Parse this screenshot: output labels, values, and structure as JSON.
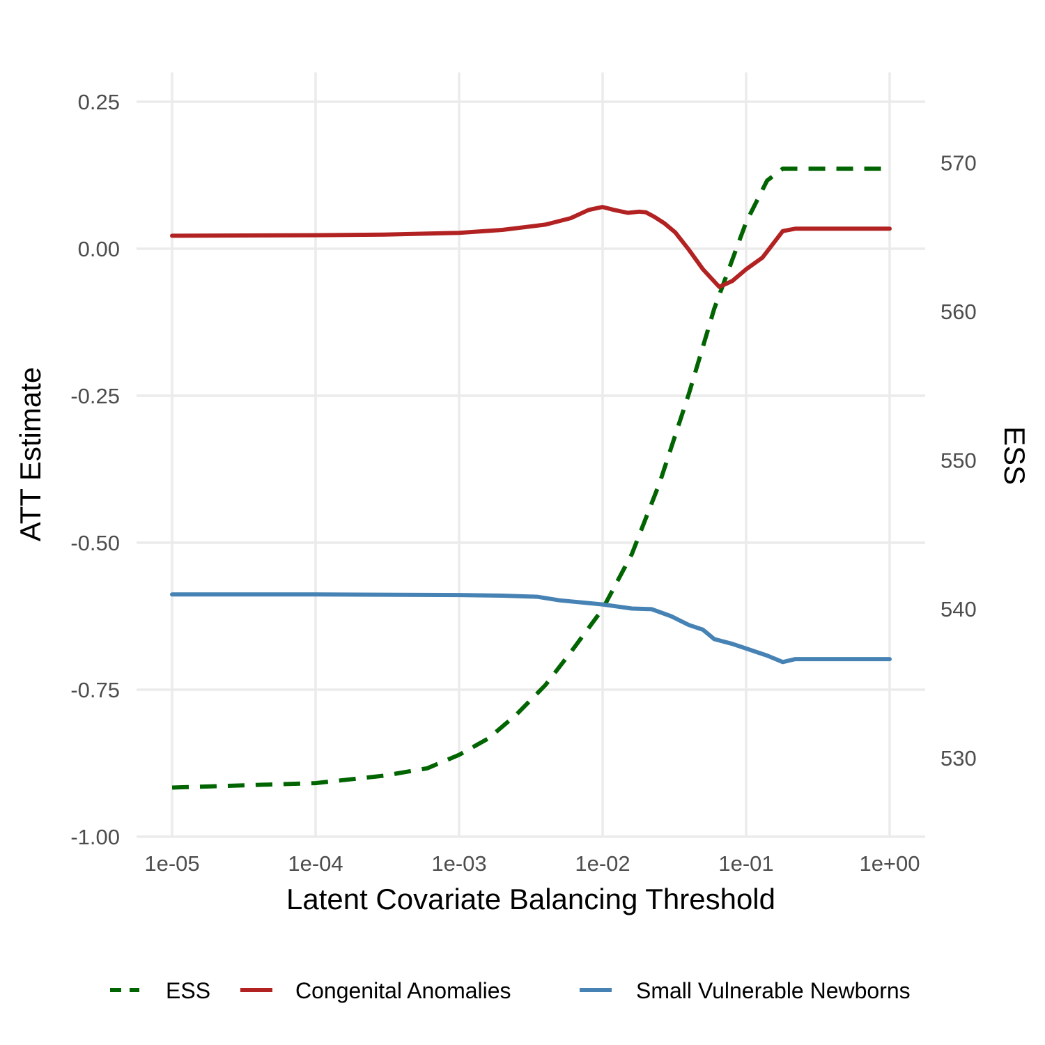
{
  "chart_data": {
    "type": "line",
    "xscale": "log10",
    "xlabel": "Latent Covariate Balancing Threshold",
    "ylabel_left": "ATT Estimate",
    "ylabel_right": "ESS",
    "xlim": [
      1e-05,
      1
    ],
    "ylim_left": [
      -1.0,
      0.25
    ],
    "ylim_right": [
      524.7,
      574.1
    ],
    "x_ticks": [
      {
        "value": 1e-05,
        "label": "1e-05"
      },
      {
        "value": 0.0001,
        "label": "1e-04"
      },
      {
        "value": 0.001,
        "label": "1e-03"
      },
      {
        "value": 0.01,
        "label": "1e-02"
      },
      {
        "value": 0.1,
        "label": "1e-01"
      },
      {
        "value": 1,
        "label": "1e+00"
      }
    ],
    "y_ticks_left": [
      {
        "value": 0.25,
        "label": "0.25"
      },
      {
        "value": 0.0,
        "label": "0.00"
      },
      {
        "value": -0.25,
        "label": "-0.25"
      },
      {
        "value": -0.5,
        "label": "-0.50"
      },
      {
        "value": -0.75,
        "label": "-0.75"
      },
      {
        "value": -1.0,
        "label": "-1.00"
      }
    ],
    "y_ticks_right": [
      {
        "value": 570,
        "label": "570"
      },
      {
        "value": 560,
        "label": "560"
      },
      {
        "value": 550,
        "label": "550"
      },
      {
        "value": 540,
        "label": "540"
      },
      {
        "value": 530,
        "label": "530"
      }
    ],
    "legend_position": "bottom",
    "series": [
      {
        "name": "ESS",
        "axis": "right",
        "style": "dashed",
        "color": "#006400",
        "x": [
          1e-05,
          0.0001,
          0.0003,
          0.0006,
          0.001,
          0.0016,
          0.0025,
          0.004,
          0.006,
          0.01,
          0.016,
          0.025,
          0.04,
          0.06,
          0.1,
          0.14,
          0.18,
          0.25,
          0.5,
          1
        ],
        "y": [
          528.0,
          528.3,
          528.8,
          529.3,
          530.2,
          531.3,
          532.9,
          534.9,
          537.1,
          540.0,
          543.7,
          548.5,
          554.5,
          560.2,
          566.0,
          568.8,
          569.6,
          569.6,
          569.6,
          569.6
        ]
      },
      {
        "name": "Congenital Anomalies",
        "axis": "left",
        "style": "solid",
        "color": "#b22222",
        "x": [
          1e-05,
          0.0001,
          0.0003,
          0.001,
          0.002,
          0.004,
          0.006,
          0.008,
          0.01,
          0.012,
          0.015,
          0.018,
          0.02,
          0.023,
          0.027,
          0.032,
          0.04,
          0.05,
          0.065,
          0.08,
          0.1,
          0.13,
          0.18,
          0.22,
          0.5,
          1
        ],
        "y": [
          0.022,
          0.023,
          0.024,
          0.027,
          0.032,
          0.041,
          0.052,
          0.066,
          0.071,
          0.066,
          0.061,
          0.063,
          0.062,
          0.054,
          0.043,
          0.028,
          -0.002,
          -0.035,
          -0.065,
          -0.055,
          -0.035,
          -0.015,
          0.03,
          0.034,
          0.034,
          0.034
        ]
      },
      {
        "name": "Small Vulnerable Newborns",
        "axis": "left",
        "style": "solid",
        "color": "#4682b4",
        "x": [
          1e-05,
          0.0001,
          0.001,
          0.002,
          0.0035,
          0.005,
          0.01,
          0.016,
          0.022,
          0.03,
          0.04,
          0.05,
          0.06,
          0.08,
          0.1,
          0.14,
          0.18,
          0.22,
          0.5,
          1
        ],
        "y": [
          -0.588,
          -0.588,
          -0.589,
          -0.59,
          -0.592,
          -0.598,
          -0.605,
          -0.612,
          -0.613,
          -0.625,
          -0.64,
          -0.648,
          -0.664,
          -0.672,
          -0.68,
          -0.692,
          -0.703,
          -0.698,
          -0.698,
          -0.698
        ]
      }
    ]
  }
}
